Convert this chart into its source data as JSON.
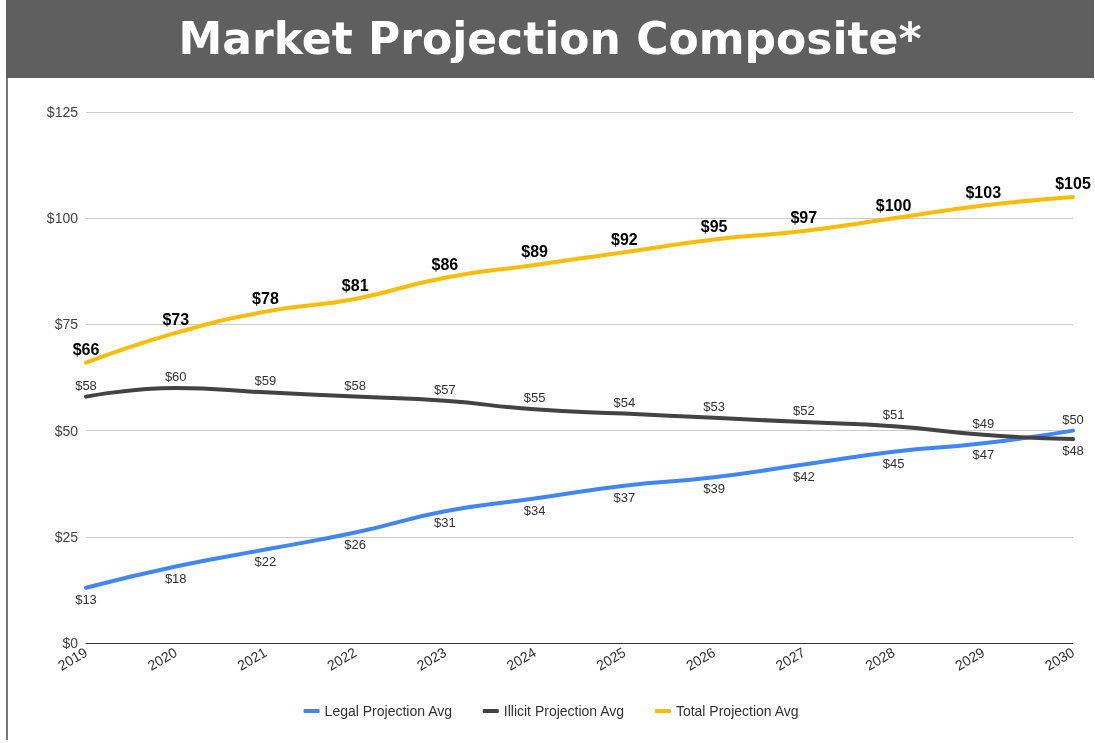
{
  "chart_data": {
    "type": "line",
    "title": "Market Projection Composite*",
    "categories": [
      "2019",
      "2020",
      "2021",
      "2022",
      "2023",
      "2024",
      "2025",
      "2026",
      "2027",
      "2028",
      "2029",
      "2030"
    ],
    "series": [
      {
        "name": "Legal Projection Avg",
        "color": "#4285f4",
        "values": [
          13,
          18,
          22,
          26,
          31,
          34,
          37,
          39,
          42,
          45,
          47,
          50
        ],
        "value_labels": [
          "$13",
          "$18",
          "$22",
          "$26",
          "$31",
          "$34",
          "$37",
          "$39",
          "$42",
          "$45",
          "$47",
          "$50"
        ]
      },
      {
        "name": "Illicit Projection Avg",
        "color": "#434343",
        "values": [
          58,
          60,
          59,
          58,
          57,
          55,
          54,
          53,
          52,
          51,
          49,
          48
        ],
        "value_labels": [
          "$58",
          "$60",
          "$59",
          "$58",
          "$57",
          "$55",
          "$54",
          "$53",
          "$52",
          "$51",
          "$49",
          "$48"
        ]
      },
      {
        "name": "Total Projection Avg",
        "color": "#fbbc04",
        "values": [
          66,
          73,
          78,
          81,
          86,
          89,
          92,
          95,
          97,
          100,
          103,
          105
        ],
        "value_labels": [
          "$66",
          "$73",
          "$78",
          "$81",
          "$86",
          "$89",
          "$92",
          "$95",
          "$97",
          "$100",
          "$103",
          "$105"
        ]
      }
    ],
    "ylim": [
      0,
      125
    ],
    "yticks": [
      {
        "value": 0,
        "label": "$0"
      },
      {
        "value": 25,
        "label": "$25"
      },
      {
        "value": 50,
        "label": "$50"
      },
      {
        "value": 75,
        "label": "$75"
      },
      {
        "value": 100,
        "label": "$100"
      },
      {
        "value": 125,
        "label": "$125"
      }
    ],
    "grid": "y",
    "legend": "bottom",
    "marker": "none",
    "line_style": "solid"
  }
}
